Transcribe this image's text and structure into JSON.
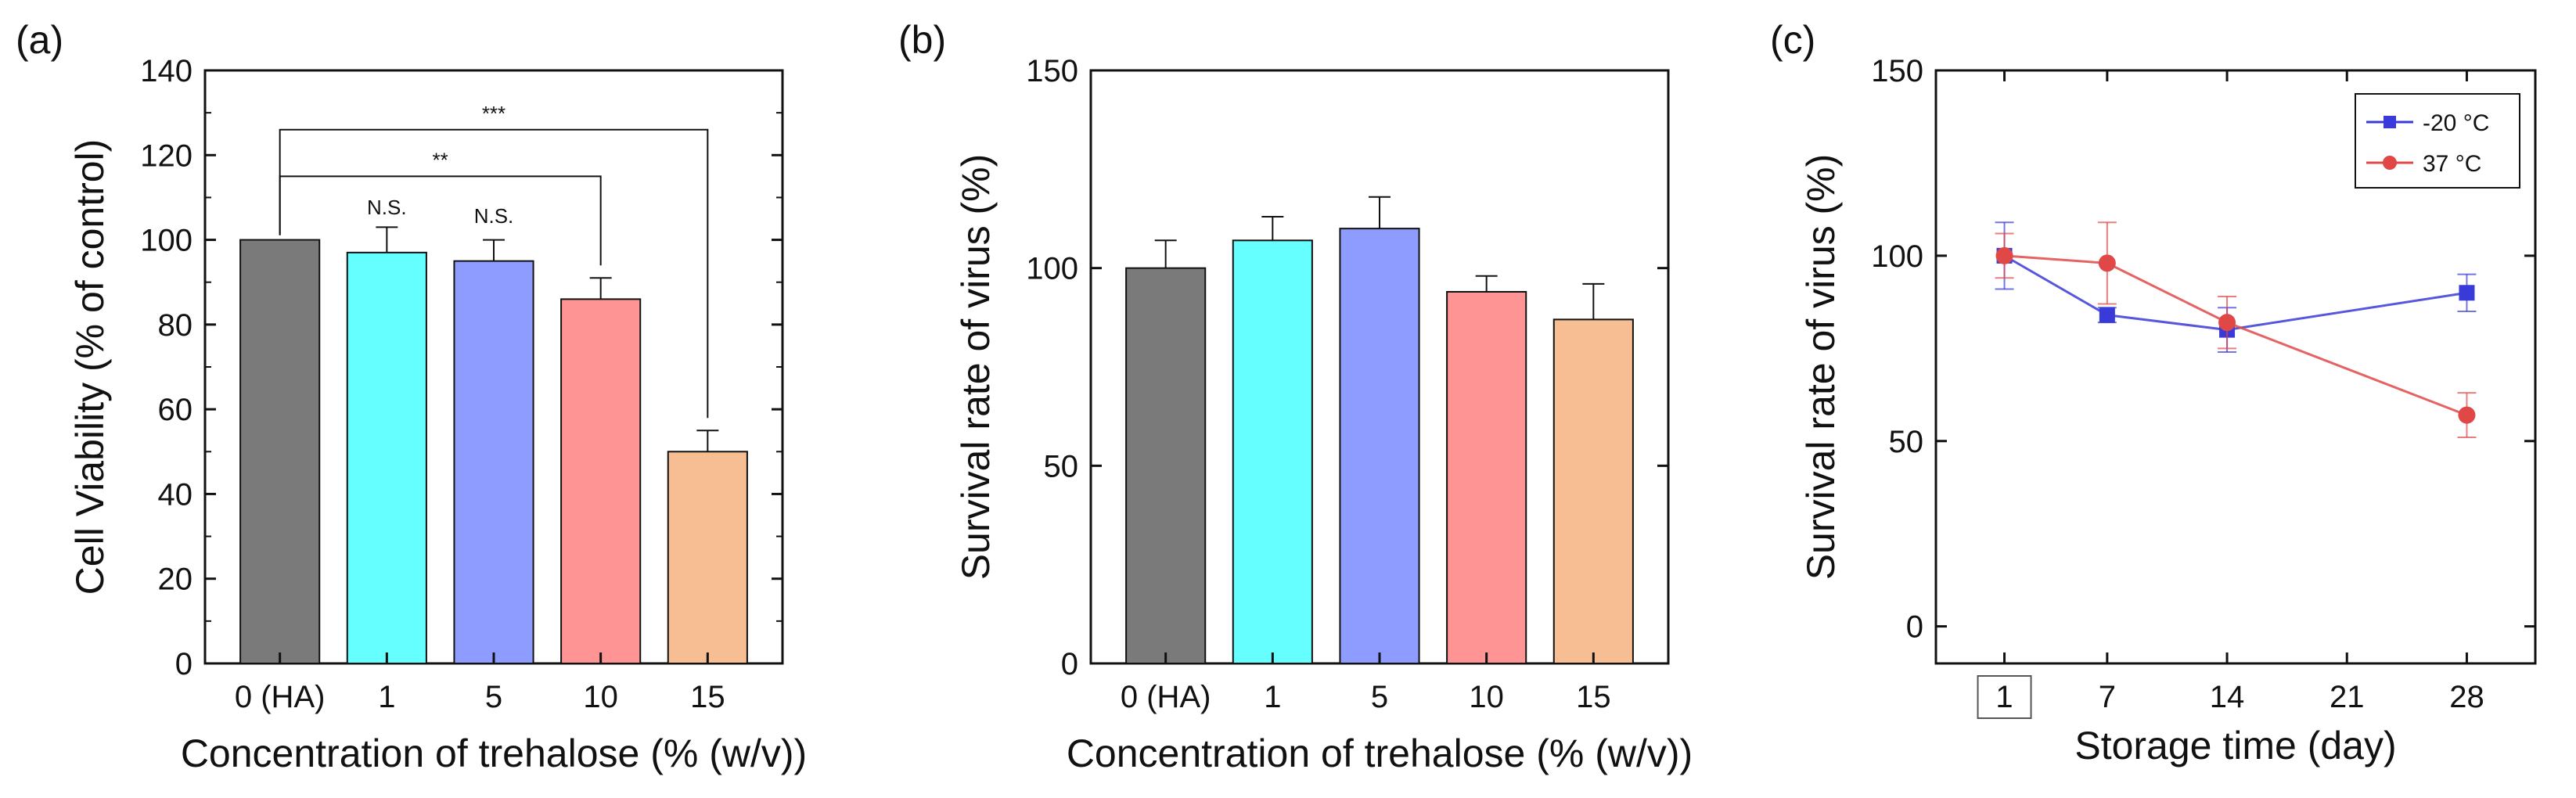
{
  "chart_data": [
    {
      "type": "bar",
      "panel_label": "(a)",
      "categories": [
        "0 (HA)",
        "1",
        "5",
        "10",
        "15"
      ],
      "values": [
        100,
        97,
        95,
        86,
        50
      ],
      "errors": [
        0,
        6,
        5,
        5,
        5
      ],
      "colors": [
        "#7a7a7a",
        "#66ffff",
        "#8e9bff",
        "#ff9494",
        "#f7be94"
      ],
      "xlabel": "Concentration of trehalose (% (w/v))",
      "ylabel": "Cell Viability (% of control)",
      "ylim": [
        0,
        140
      ],
      "yticks": [
        0,
        20,
        40,
        60,
        80,
        100,
        120,
        140
      ],
      "annotations": [
        {
          "text": "N.S.",
          "category": "1",
          "y": 106
        },
        {
          "text": "N.S.",
          "category": "5",
          "y": 104
        },
        {
          "text": "**",
          "from": "0 (HA)",
          "to": "10",
          "y": 115
        },
        {
          "text": "***",
          "from": "0 (HA)",
          "to": "15",
          "y": 126
        }
      ],
      "grid": false
    },
    {
      "type": "bar",
      "panel_label": "(b)",
      "categories": [
        "0 (HA)",
        "1",
        "5",
        "10",
        "15"
      ],
      "values": [
        100,
        107,
        110,
        94,
        87
      ],
      "errors": [
        7,
        6,
        8,
        4,
        9
      ],
      "colors": [
        "#7a7a7a",
        "#66ffff",
        "#8e9bff",
        "#ff9494",
        "#f7be94"
      ],
      "xlabel": "Concentration of trehalose (% (w/v))",
      "ylabel": "Survival rate of virus (%)",
      "ylim": [
        0,
        150
      ],
      "yticks": [
        0,
        50,
        100,
        150
      ],
      "grid": false
    },
    {
      "type": "line",
      "panel_label": "(c)",
      "x": [
        1,
        7,
        14,
        21,
        28
      ],
      "xticks": [
        "1",
        "7",
        "14",
        "21",
        "28"
      ],
      "series": [
        {
          "name": "-20 °C",
          "color": "#3a3ad8",
          "points": [
            [
              1,
              100
            ],
            [
              7,
              84
            ],
            [
              14,
              80
            ],
            [
              28,
              90
            ]
          ],
          "errors": [
            9,
            2,
            6,
            5
          ]
        },
        {
          "name": "37 °C",
          "color": "#e04848",
          "points": [
            [
              1,
              100
            ],
            [
              7,
              98
            ],
            [
              14,
              82
            ],
            [
              28,
              57
            ]
          ],
          "errors": [
            6,
            11,
            7,
            6
          ]
        }
      ],
      "xlabel": "Storage time (day)",
      "ylabel": "Survival rate of virus (%)",
      "xlim": [
        -3,
        32
      ],
      "ylim": [
        -10,
        150
      ],
      "yticks": [
        0,
        50,
        100,
        150
      ],
      "legend_position": "top-right",
      "grid": false
    }
  ]
}
